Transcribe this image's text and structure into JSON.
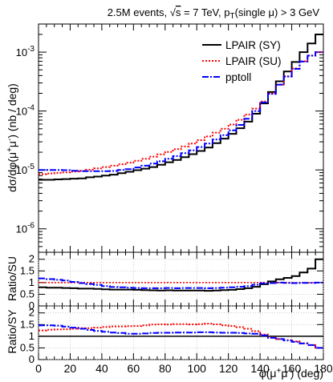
{
  "chart_data": {
    "type": "line",
    "title": {
      "main": "2.5M events, ",
      "sqrt_sym": "√",
      "s_var": "s",
      "energy": " = 7 TeV, p",
      "pt_sub": "T",
      "cut": "(single μ) > 3 GeV"
    },
    "xlabel": {
      "base": "φ(μ",
      "sup1": "+",
      "mid": "μ",
      "sup2": "-",
      "tail": ") (deg)"
    },
    "ylabel": {
      "p1": "dσ/dφ(μ",
      "sup1": "+",
      "p2": "μ",
      "sup2": "-",
      "p3": ") (nb / deg)"
    },
    "ratio_labels": {
      "top": "Ratio/SU",
      "bottom": "Ratio/SY"
    },
    "x_ticks": [
      "0",
      "20",
      "40",
      "60",
      "80",
      "100",
      "120",
      "140",
      "160",
      "180"
    ],
    "xlim": [
      0,
      180
    ],
    "main_yscale": "log",
    "main_ylim": [
      4e-07,
      0.003
    ],
    "main_yticks": [
      {
        "v": 1e-06,
        "base": "10",
        "exp": "-6"
      },
      {
        "v": 1e-05,
        "base": "10",
        "exp": "-5"
      },
      {
        "v": 0.0001,
        "base": "10",
        "exp": "-4"
      },
      {
        "v": 0.001,
        "base": "10",
        "exp": "-3"
      }
    ],
    "ratio_ylim": [
      0,
      2.3
    ],
    "ratio_yticks": [
      "0",
      "0.5",
      "1",
      "1.5",
      "2"
    ],
    "bin_width_deg": 5,
    "series": [
      {
        "name": "LPAIR (SY)",
        "color": "#000000",
        "values": [
          6.8e-06,
          6.8e-06,
          6.9e-06,
          7e-06,
          7.1e-06,
          7.2e-06,
          7.5e-06,
          7.7e-06,
          8e-06,
          8.3e-06,
          8.8e-06,
          9.3e-06,
          9.9e-06,
          1.05e-05,
          1.12e-05,
          1.22e-05,
          1.35e-05,
          1.48e-05,
          1.65e-05,
          1.85e-05,
          2.1e-05,
          2.4e-05,
          2.85e-05,
          3.4e-05,
          4.1e-05,
          5.1e-05,
          6.6e-05,
          9e-05,
          0.000135,
          0.00021,
          0.00032,
          0.00047,
          0.00068,
          0.001,
          0.0014,
          0.002
        ]
      },
      {
        "name": "LPAIR (SU)",
        "color": "#ff0000",
        "values": [
          8.5e-06,
          8.7e-06,
          8.9e-06,
          9.1e-06,
          9.4e-06,
          9.7e-06,
          1.01e-05,
          1.06e-05,
          1.12e-05,
          1.18e-05,
          1.25e-05,
          1.33e-05,
          1.43e-05,
          1.55e-05,
          1.68e-05,
          1.84e-05,
          2.02e-05,
          2.25e-05,
          2.5e-05,
          2.8e-05,
          3.2e-05,
          3.7e-05,
          4.3e-05,
          5e-05,
          5.9e-05,
          7.1e-05,
          8.7e-05,
          0.00011,
          0.000145,
          0.0002,
          0.00028,
          0.00039,
          0.00053,
          0.0007,
          0.00088,
          0.001
        ]
      },
      {
        "name": "pptoll",
        "color": "#0000ff",
        "values": [
          1e-05,
          1e-05,
          1e-05,
          9.9e-06,
          9.7e-06,
          9.5e-06,
          9.5e-06,
          9.5e-06,
          9.5e-06,
          9.6e-06,
          1e-05,
          1.03e-05,
          1.1e-05,
          1.18e-05,
          1.28e-05,
          1.4e-05,
          1.55e-05,
          1.72e-05,
          1.92e-05,
          2.15e-05,
          2.45e-05,
          2.8e-05,
          3.3e-05,
          3.9e-05,
          4.7e-05,
          5.8e-05,
          7.4e-05,
          0.0001,
          0.00014,
          0.000195,
          0.00028,
          0.000385,
          0.00052,
          0.00069,
          0.00087,
          0.001
        ]
      }
    ],
    "ratio_su_sy": [
      0.8,
      0.78,
      0.78,
      0.77,
      0.76,
      0.74,
      0.74,
      0.73,
      0.71,
      0.7,
      0.7,
      0.7,
      0.69,
      0.68,
      0.67,
      0.66,
      0.67,
      0.66,
      0.66,
      0.66,
      0.66,
      0.65,
      0.66,
      0.68,
      0.69,
      0.72,
      0.76,
      0.82,
      0.93,
      1.05,
      1.14,
      1.2,
      1.28,
      1.43,
      1.6,
      2.0
    ],
    "ratio_su_pptoll": [
      1.18,
      1.15,
      1.12,
      1.09,
      1.03,
      0.98,
      0.94,
      0.9,
      0.85,
      0.81,
      0.8,
      0.78,
      0.77,
      0.76,
      0.76,
      0.76,
      0.77,
      0.76,
      0.77,
      0.77,
      0.77,
      0.76,
      0.77,
      0.78,
      0.8,
      0.82,
      0.85,
      0.91,
      0.97,
      0.98,
      1.0,
      0.99,
      0.98,
      0.99,
      0.99,
      1.0
    ],
    "ratio_sy_su": [
      1.25,
      1.28,
      1.29,
      1.3,
      1.32,
      1.35,
      1.35,
      1.37,
      1.4,
      1.42,
      1.42,
      1.43,
      1.44,
      1.47,
      1.5,
      1.51,
      1.5,
      1.52,
      1.52,
      1.51,
      1.52,
      1.54,
      1.51,
      1.47,
      1.44,
      1.39,
      1.32,
      1.22,
      1.07,
      0.95,
      0.88,
      0.83,
      0.78,
      0.7,
      0.62,
      0.5
    ],
    "ratio_sy_pptoll": [
      1.47,
      1.47,
      1.45,
      1.41,
      1.37,
      1.32,
      1.27,
      1.23,
      1.19,
      1.16,
      1.14,
      1.11,
      1.11,
      1.12,
      1.14,
      1.15,
      1.15,
      1.16,
      1.16,
      1.16,
      1.17,
      1.17,
      1.16,
      1.15,
      1.15,
      1.14,
      1.12,
      1.11,
      1.04,
      0.93,
      0.88,
      0.82,
      0.76,
      0.69,
      0.62,
      0.5
    ]
  }
}
